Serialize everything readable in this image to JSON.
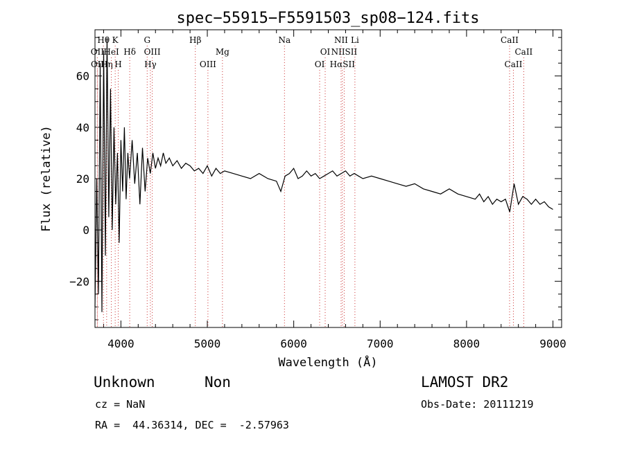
{
  "chart_data": {
    "type": "line",
    "title": "spec−55915−F5591503_sp08−124.fits",
    "xlabel": "Wavelength (Å)",
    "ylabel": "Flux (relative)",
    "xlim": [
      3700,
      9100
    ],
    "ylim": [
      -38,
      78
    ],
    "xticks": [
      4000,
      5000,
      6000,
      7000,
      8000,
      9000
    ],
    "xtick_labels": [
      "4000",
      "5000",
      "6000",
      "7000",
      "8000",
      "9000"
    ],
    "yticks": [
      -20,
      0,
      20,
      40,
      60
    ],
    "ytick_labels": [
      "−20",
      "0",
      "20",
      "40",
      "60"
    ],
    "grid": false,
    "line_color": "#000000",
    "line_marker_color": "#cc3333",
    "series": [
      {
        "x": [
          3700,
          3720,
          3740,
          3760,
          3780,
          3800,
          3820,
          3840,
          3860,
          3880,
          3900,
          3920,
          3940,
          3960,
          3980,
          4000,
          4020,
          4040,
          4060,
          4080,
          4100,
          4130,
          4160,
          4190,
          4220,
          4250,
          4280,
          4310,
          4340,
          4370,
          4400,
          4430,
          4460,
          4490,
          4520,
          4560,
          4600,
          4650,
          4700,
          4750,
          4800,
          4850,
          4900,
          4950,
          5000,
          5050,
          5100,
          5150,
          5200,
          5300,
          5400,
          5500,
          5600,
          5700,
          5800,
          5850,
          5900,
          5950,
          6000,
          6050,
          6100,
          6150,
          6200,
          6250,
          6300,
          6350,
          6400,
          6450,
          6500,
          6550,
          6600,
          6650,
          6700,
          6750,
          6800,
          6900,
          7000,
          7100,
          7200,
          7300,
          7400,
          7500,
          7600,
          7700,
          7800,
          7900,
          8000,
          8100,
          8150,
          8200,
          8250,
          8300,
          8350,
          8400,
          8450,
          8500,
          8550,
          8600,
          8650,
          8700,
          8750,
          8800,
          8850,
          8900,
          8950,
          9000
        ],
        "y": [
          -30,
          20,
          -25,
          65,
          -32,
          70,
          -10,
          75,
          5,
          55,
          0,
          40,
          10,
          30,
          -5,
          35,
          15,
          40,
          12,
          30,
          20,
          35,
          18,
          30,
          10,
          32,
          15,
          28,
          22,
          30,
          24,
          28,
          25,
          30,
          26,
          28,
          25,
          27,
          24,
          26,
          25,
          23,
          24,
          22,
          25,
          21,
          24,
          22,
          23,
          22,
          21,
          20,
          22,
          20,
          19,
          15,
          21,
          22,
          24,
          20,
          21,
          23,
          21,
          22,
          20,
          21,
          22,
          23,
          21,
          22,
          23,
          21,
          22,
          21,
          20,
          21,
          20,
          19,
          18,
          17,
          18,
          16,
          15,
          14,
          16,
          14,
          13,
          12,
          14,
          11,
          13,
          10,
          12,
          11,
          12,
          7,
          18,
          10,
          13,
          12,
          10,
          12,
          10,
          11,
          9,
          8
        ]
      }
    ],
    "lines": [
      {
        "label": "Hθ",
        "x": 3798,
        "row": 1
      },
      {
        "label": "OII",
        "x": 3727,
        "row": 2
      },
      {
        "label": "OII",
        "x": 3729,
        "row": 3
      },
      {
        "label": "Hη",
        "x": 3835,
        "row": 3
      },
      {
        "label": "HeI",
        "x": 3889,
        "row": 2
      },
      {
        "label": "K",
        "x": 3934,
        "row": 1
      },
      {
        "label": "H",
        "x": 3969,
        "row": 3
      },
      {
        "label": "Hδ",
        "x": 4102,
        "row": 2
      },
      {
        "label": "G",
        "x": 4304,
        "row": 1
      },
      {
        "label": "OIII",
        "x": 4363,
        "row": 2
      },
      {
        "label": "Hγ",
        "x": 4341,
        "row": 3
      },
      {
        "label": "Hβ",
        "x": 4861,
        "row": 1
      },
      {
        "label": "OIII",
        "x": 5007,
        "row": 3
      },
      {
        "label": "Mg",
        "x": 5175,
        "row": 2
      },
      {
        "label": "Na",
        "x": 5893,
        "row": 1
      },
      {
        "label": "OI",
        "x": 6364,
        "row": 2
      },
      {
        "label": "OI",
        "x": 6300,
        "row": 3
      },
      {
        "label": "NII",
        "x": 6548,
        "row": 1
      },
      {
        "label": "Li",
        "x": 6708,
        "row": 1
      },
      {
        "label": "NIISII",
        "x": 6584,
        "row": 2
      },
      {
        "label": "HαSII",
        "x": 6563,
        "row": 3
      },
      {
        "label": "CaII",
        "x": 8498,
        "row": 1
      },
      {
        "label": "CaII",
        "x": 8542,
        "row": 3
      },
      {
        "label": "CaII",
        "x": 8662,
        "row": 2
      }
    ]
  },
  "footer": {
    "object_class": "Unknown",
    "subclass": "Non",
    "survey": "LAMOST DR2",
    "cz": "cz = NaN",
    "obs_date": "Obs-Date: 20111219",
    "coords": "RA =  44.36314, DEC =  -2.57963"
  }
}
